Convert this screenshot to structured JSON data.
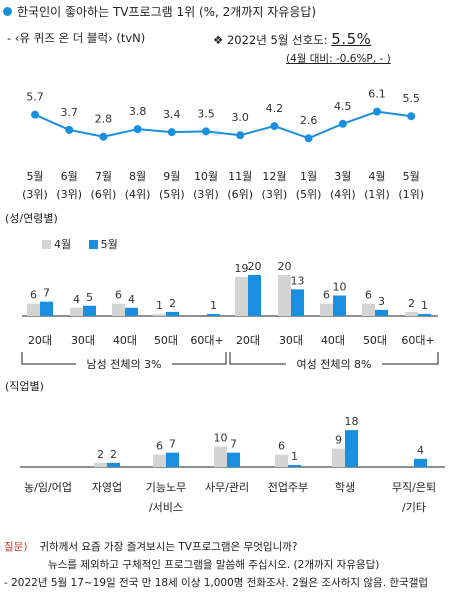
{
  "header": {
    "title": "한국인이 좋아하는 TV프로그램 1위 (%, 2개까지 자유응답)",
    "subtitle": "- ‹유 퀴즈 온 더 블럭› (tvN)",
    "pref_label": "❖ 2022년 5월 선호도:",
    "pref_value": "5.5%",
    "change_note": "(4월 대비: -0.6%P, ‐ )"
  },
  "colors": {
    "line": "#1a8fe0",
    "may": "#1a8fe0",
    "april": "#d4d4d4",
    "text": "#222222"
  },
  "chart_data": [
    {
      "type": "line",
      "categories": [
        [
          "5월",
          "(3위)"
        ],
        [
          "6월",
          "(3위)"
        ],
        [
          "7월",
          "(6위)"
        ],
        [
          "8월",
          "(4위)"
        ],
        [
          "9월",
          "(5위)"
        ],
        [
          "10월",
          "(3위)"
        ],
        [
          "11월",
          "(6위)"
        ],
        [
          "12월",
          "(3위)"
        ],
        [
          "1월",
          "(5위)"
        ],
        [
          "3월",
          "(4위)"
        ],
        [
          "4월",
          "(1위)"
        ],
        [
          "5월",
          "(1위)"
        ]
      ],
      "values": [
        5.7,
        3.7,
        2.8,
        3.8,
        3.4,
        3.5,
        3.0,
        4.2,
        2.6,
        4.5,
        6.1,
        5.5
      ],
      "value_labels": [
        "5.7",
        "3.7",
        "2.8",
        "3.8",
        "3.4",
        "3.5",
        "3.0",
        "4.2",
        "2.6",
        "4.5",
        "6.1",
        "5.5"
      ]
    },
    {
      "type": "bar",
      "section_label": "(성/연령별)",
      "legend": [
        "4월",
        "5월"
      ],
      "categories": [
        "20대",
        "30대",
        "40대",
        "50대",
        "60대+",
        "20대",
        "30대",
        "40대",
        "50대",
        "60대+"
      ],
      "series": [
        {
          "name": "4월",
          "values": [
            6,
            4,
            6,
            1,
            null,
            19,
            20,
            6,
            6,
            2
          ]
        },
        {
          "name": "5월",
          "values": [
            7,
            5,
            4,
            2,
            1,
            20,
            13,
            10,
            3,
            1
          ]
        }
      ],
      "groups": [
        {
          "label": "남성 전체의 3%"
        },
        {
          "label": "여성 전체의 8%"
        }
      ]
    },
    {
      "type": "bar",
      "section_label": "(직업별)",
      "categories": [
        [
          "농/임/어업"
        ],
        [
          "자영업"
        ],
        [
          "기능노무",
          "/서비스"
        ],
        [
          "사무/관리"
        ],
        [
          "전업주부"
        ],
        [
          "학생"
        ],
        [
          "무직/은퇴",
          "/기타"
        ]
      ],
      "series": [
        {
          "name": "4월",
          "values": [
            null,
            2,
            6,
            10,
            6,
            9,
            null
          ]
        },
        {
          "name": "5월",
          "values": [
            null,
            2,
            7,
            7,
            1,
            18,
            4
          ]
        }
      ]
    }
  ],
  "footer": {
    "question_label": "질문)",
    "question_text": "귀하께서 요즘 가장 즐겨보시는 TV프로그램은 무엇입니까?",
    "question_note": "뉴스를 제외하고 구체적인 프로그램을 말씀해 주십시오. (2개까지 자유응답)",
    "source": "- 2022년 5월 17~19일 전국 만 18세 이상 1,000명 전화조사. 2월은 조사하지 않음. 한국갤럽"
  }
}
